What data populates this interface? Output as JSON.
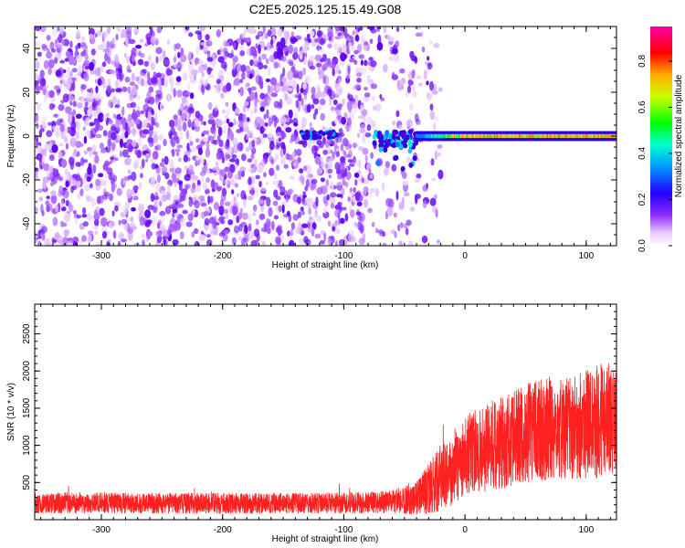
{
  "title": "C2E5.2025.125.15.49.G08",
  "chart_data": [
    {
      "type": "heatmap",
      "xlabel": "Height of straight line (km)",
      "ylabel": "Frequency (Hz)",
      "xlim": [
        -355,
        125
      ],
      "ylim": [
        -50,
        50
      ],
      "xticks": [
        -300,
        -200,
        -100,
        0,
        100
      ],
      "yticks": [
        -40,
        -20,
        0,
        20,
        40
      ],
      "colorbar": {
        "label": "Normalized spectral amplitude",
        "range": [
          0,
          0.95
        ],
        "ticks": [
          0.0,
          0.2,
          0.4,
          0.6,
          0.8
        ],
        "colors": [
          "#ffffff",
          "#ecd2ff",
          "#8c2bff",
          "#2200ff",
          "#0099ff",
          "#00ffd0",
          "#00ff00",
          "#ccff00",
          "#ffaa00",
          "#ff0000",
          "#ff00aa"
        ]
      },
      "regions": [
        {
          "x": [
            -355,
            -75
          ],
          "description_y": [
            -50,
            50
          ],
          "amplitude": 0.15
        },
        {
          "x": [
            -75,
            -20
          ],
          "y": [
            -50,
            50
          ],
          "amplitude": 0.1
        },
        {
          "x": [
            -135,
            -105
          ],
          "y": [
            -1,
            3
          ],
          "amplitude": 0.3
        },
        {
          "x": [
            -75,
            -40
          ],
          "y": [
            -4,
            2
          ],
          "amplitude": 0.4
        },
        {
          "x": [
            -40,
            125
          ],
          "y": [
            -2,
            2
          ],
          "amplitude": 0.9
        }
      ]
    },
    {
      "type": "line",
      "xlabel": "Height of straight line (km)",
      "ylabel": "SNR (10 * v/v)",
      "xlim": [
        -355,
        125
      ],
      "ylim": [
        0,
        2900
      ],
      "xticks": [
        -300,
        -200,
        -100,
        0,
        100
      ],
      "yticks": [
        500,
        1000,
        1500,
        2000,
        2500
      ],
      "series": [
        {
          "color": "#ff2020",
          "x": [
            -355,
            -300,
            -250,
            -200,
            -150,
            -100,
            -60,
            -40,
            -25,
            -10,
            0,
            20,
            40,
            60,
            80,
            100,
            125
          ],
          "y_mean": [
            220,
            225,
            220,
            218,
            222,
            225,
            240,
            290,
            480,
            700,
            850,
            980,
            1100,
            1200,
            1250,
            1300,
            1350
          ],
          "y_spread": [
            140,
            140,
            140,
            140,
            140,
            140,
            160,
            220,
            400,
            500,
            550,
            600,
            650,
            700,
            700,
            750,
            800
          ]
        }
      ]
    }
  ]
}
